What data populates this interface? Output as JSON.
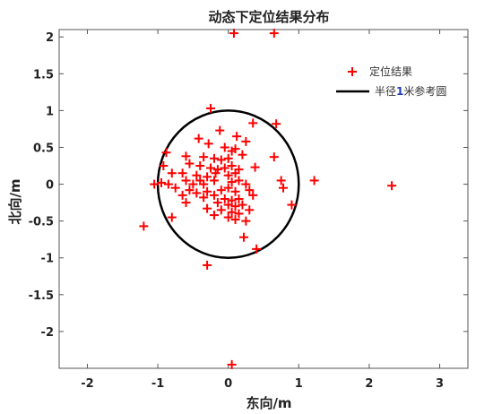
{
  "chart_data": {
    "type": "scatter",
    "title": "动态下定位结果分布",
    "xlabel": "东向/m",
    "ylabel": "北向/m",
    "xlim": [
      -2.4,
      3.4
    ],
    "ylim": [
      -2.5,
      2.1
    ],
    "xticks": [
      -2,
      -1,
      0,
      1,
      2,
      3
    ],
    "yticks": [
      -2,
      -1.5,
      -1,
      -0.5,
      0,
      0.5,
      1,
      1.5,
      2
    ],
    "grid": false,
    "legend_position": "top-right",
    "legend": {
      "points_label": "定位结果",
      "circle_label_prefix": "半径",
      "circle_label_num": "1",
      "circle_label_suffix": "米参考圆"
    },
    "reference_circle": {
      "center": [
        0,
        0
      ],
      "radius": 1
    },
    "colors": {
      "points": "#ff0000",
      "circle": "#000000"
    },
    "series": [
      {
        "name": "定位结果",
        "points": [
          [
            0.08,
            2.05
          ],
          [
            0.65,
            2.05
          ],
          [
            -0.25,
            1.03
          ],
          [
            0.35,
            0.83
          ],
          [
            0.68,
            0.82
          ],
          [
            -0.12,
            0.73
          ],
          [
            -0.42,
            0.62
          ],
          [
            0.12,
            0.65
          ],
          [
            0.25,
            0.58
          ],
          [
            -0.05,
            0.5
          ],
          [
            -0.28,
            0.55
          ],
          [
            0.1,
            0.48
          ],
          [
            0.05,
            0.45
          ],
          [
            -0.88,
            0.43
          ],
          [
            -0.6,
            0.38
          ],
          [
            -0.35,
            0.37
          ],
          [
            -0.2,
            0.35
          ],
          [
            -0.1,
            0.33
          ],
          [
            0.0,
            0.35
          ],
          [
            0.2,
            0.4
          ],
          [
            0.65,
            0.37
          ],
          [
            -0.92,
            0.25
          ],
          [
            -0.55,
            0.28
          ],
          [
            -0.4,
            0.25
          ],
          [
            -0.25,
            0.22
          ],
          [
            -0.15,
            0.2
          ],
          [
            -0.05,
            0.22
          ],
          [
            0.05,
            0.25
          ],
          [
            0.15,
            0.2
          ],
          [
            0.38,
            0.23
          ],
          [
            -0.8,
            0.15
          ],
          [
            -0.65,
            0.15
          ],
          [
            -0.45,
            0.12
          ],
          [
            -0.3,
            0.1
          ],
          [
            -0.18,
            0.15
          ],
          [
            0.0,
            0.12
          ],
          [
            0.1,
            0.15
          ],
          [
            -0.95,
            0.02
          ],
          [
            -0.85,
            0.0
          ],
          [
            -0.6,
            0.05
          ],
          [
            -0.5,
            0.0
          ],
          [
            -0.4,
            0.05
          ],
          [
            -0.35,
            0.0
          ],
          [
            -0.2,
            0.05
          ],
          [
            0.05,
            0.03
          ],
          [
            0.15,
            0.05
          ],
          [
            0.25,
            0.0
          ],
          [
            0.75,
            0.05
          ],
          [
            1.22,
            0.05
          ],
          [
            0.78,
            -0.05
          ],
          [
            -1.05,
            0.0
          ],
          [
            -0.75,
            -0.05
          ],
          [
            -0.55,
            -0.08
          ],
          [
            -0.45,
            -0.12
          ],
          [
            -0.3,
            -0.1
          ],
          [
            -0.1,
            -0.08
          ],
          [
            0.0,
            -0.05
          ],
          [
            0.1,
            -0.1
          ],
          [
            0.3,
            -0.08
          ],
          [
            -0.65,
            -0.15
          ],
          [
            -0.35,
            -0.18
          ],
          [
            -0.2,
            -0.15
          ],
          [
            -0.05,
            -0.2
          ],
          [
            0.05,
            -0.22
          ],
          [
            0.15,
            -0.2
          ],
          [
            0.35,
            -0.15
          ],
          [
            -0.6,
            -0.25
          ],
          [
            -0.15,
            -0.25
          ],
          [
            0.0,
            -0.28
          ],
          [
            0.1,
            -0.3
          ],
          [
            0.2,
            -0.28
          ],
          [
            -0.3,
            -0.33
          ],
          [
            -0.1,
            -0.35
          ],
          [
            0.05,
            -0.38
          ],
          [
            0.15,
            -0.4
          ],
          [
            0.3,
            -0.35
          ],
          [
            0.9,
            -0.28
          ],
          [
            -0.8,
            -0.45
          ],
          [
            -0.2,
            -0.42
          ],
          [
            0.0,
            -0.45
          ],
          [
            0.1,
            -0.48
          ],
          [
            0.25,
            -0.5
          ],
          [
            0.22,
            -0.72
          ],
          [
            0.4,
            -0.88
          ],
          [
            -1.2,
            -0.57
          ],
          [
            -0.3,
            -1.1
          ],
          [
            2.32,
            -0.02
          ],
          [
            0.05,
            -2.45
          ]
        ]
      }
    ]
  }
}
